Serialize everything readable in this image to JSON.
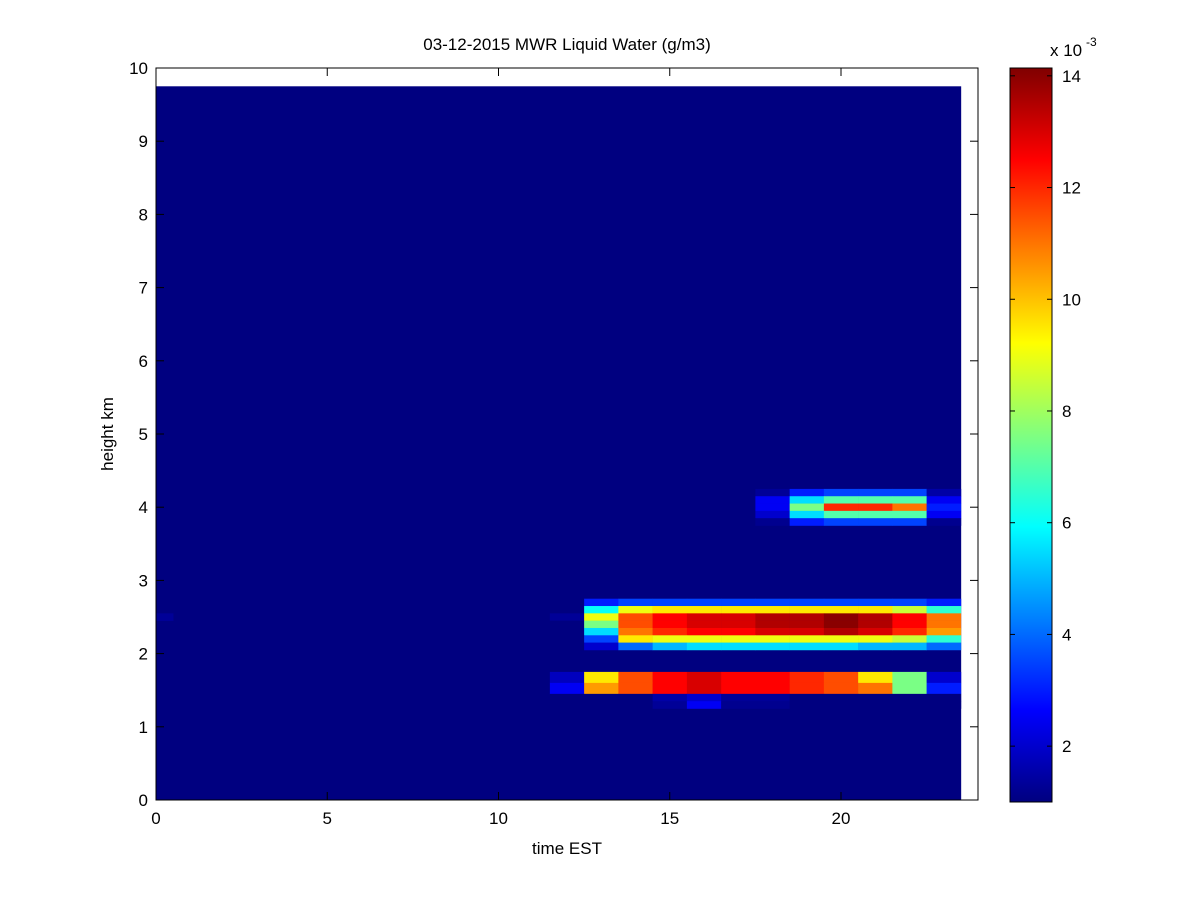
{
  "chart_data": {
    "type": "heatmap",
    "title": "03-12-2015 MWR Liquid Water (g/m3)",
    "x_label": "time EST",
    "y_label": "height km",
    "xlim": [
      0,
      24
    ],
    "xticks": [
      0,
      5,
      10,
      15,
      20
    ],
    "ylim": [
      0,
      10
    ],
    "yticks": [
      0,
      1,
      2,
      3,
      4,
      5,
      6,
      7,
      8,
      9,
      10
    ],
    "colormap": "jet",
    "clim": [
      1,
      14.14
    ],
    "colorbar_ticks": [
      2,
      4,
      6,
      8,
      10,
      12,
      14
    ],
    "colorbar_multiplier": {
      "base": "x 10",
      "exponent": "-3"
    },
    "background": {
      "x": [
        0,
        23.5
      ],
      "y": [
        0,
        9.75
      ],
      "value": 1
    },
    "x_edges": [
      11.5,
      12.5,
      13.5,
      14.5,
      15.5,
      16.5,
      17.5,
      18.5,
      19.5,
      20.5,
      21.5,
      22.5,
      23.5
    ],
    "rows": [
      {
        "y": [
          4.15,
          4.25
        ],
        "values": [
          1,
          1,
          1,
          1,
          1,
          1,
          1.3,
          3,
          3.5,
          3.5,
          3.5,
          1.5
        ]
      },
      {
        "y": [
          4.05,
          4.15
        ],
        "values": [
          1,
          1,
          1,
          1,
          1,
          1,
          2.5,
          5.5,
          7,
          7,
          7,
          2.5
        ]
      },
      {
        "y": [
          3.95,
          4.05
        ],
        "values": [
          1,
          1,
          1,
          1,
          1,
          1,
          2.5,
          7.5,
          12,
          12,
          11,
          3
        ]
      },
      {
        "y": [
          3.85,
          3.95
        ],
        "values": [
          1,
          1,
          1,
          1,
          1,
          1,
          2,
          5.5,
          7,
          7,
          7,
          2.5
        ]
      },
      {
        "y": [
          3.75,
          3.85
        ],
        "values": [
          1,
          1,
          1,
          1,
          1,
          1,
          1.2,
          3,
          3.5,
          3.5,
          3.5,
          1.2
        ]
      },
      {
        "y": [
          2.65,
          2.75
        ],
        "values": [
          1,
          3,
          3.5,
          3.5,
          3.5,
          3.5,
          3.5,
          3.5,
          3.5,
          3.5,
          3.5,
          3
        ]
      },
      {
        "y": [
          2.55,
          2.65
        ],
        "values": [
          1,
          6,
          9,
          9.5,
          9.5,
          9.5,
          9.5,
          9.5,
          9.5,
          9.5,
          8.5,
          6.5
        ]
      },
      {
        "y": [
          2.45,
          2.55
        ],
        "values": [
          1.3,
          9,
          11.5,
          12.5,
          13,
          13,
          13.5,
          13.5,
          14,
          13.5,
          12.5,
          11
        ]
      },
      {
        "y": [
          2.35,
          2.45
        ],
        "values": [
          1,
          7.5,
          11.5,
          12.5,
          13,
          13,
          13.5,
          13.5,
          14,
          13.5,
          12.5,
          11
        ]
      },
      {
        "y": [
          2.25,
          2.35
        ],
        "values": [
          1,
          5.5,
          11,
          12,
          12.5,
          12.5,
          13,
          13,
          13.5,
          13,
          12,
          10.5
        ]
      },
      {
        "y": [
          2.15,
          2.25
        ],
        "values": [
          1,
          3.5,
          9.5,
          9,
          9,
          9,
          9,
          9,
          9,
          9,
          8.5,
          6.5
        ]
      },
      {
        "y": [
          2.05,
          2.15
        ],
        "values": [
          1,
          2,
          4,
          5,
          5.5,
          5.5,
          5.5,
          5.5,
          5.5,
          5,
          5,
          4
        ]
      },
      {
        "y": [
          1.6,
          1.75
        ],
        "values": [
          1.8,
          9.5,
          11.5,
          12.5,
          13,
          12.5,
          12.5,
          12,
          11.5,
          9.5,
          7.5,
          2
        ]
      },
      {
        "y": [
          1.45,
          1.6
        ],
        "values": [
          2.5,
          10.5,
          11.5,
          12.5,
          13,
          12.5,
          12.5,
          12,
          11.5,
          11,
          7.5,
          3
        ]
      },
      {
        "y": [
          1.35,
          1.45
        ],
        "values": [
          1,
          1,
          1,
          1.5,
          2,
          1.3,
          1.3,
          1,
          1,
          1,
          1,
          1
        ]
      },
      {
        "y": [
          1.25,
          1.35
        ],
        "values": [
          1,
          1,
          1,
          1.3,
          2.5,
          1.2,
          1.2,
          1,
          1,
          1,
          1,
          1
        ]
      }
    ],
    "extra_cells": [
      {
        "x": [
          0,
          0.5
        ],
        "y": [
          2.45,
          2.55
        ],
        "value": 1.3
      }
    ]
  }
}
